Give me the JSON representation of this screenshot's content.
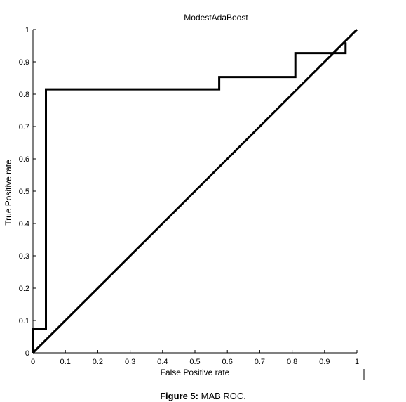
{
  "chart_data": {
    "type": "line",
    "title": "ModestAdaBoost",
    "xlabel": "False Positive rate",
    "ylabel": "True Positive rate",
    "xlim": [
      0,
      1
    ],
    "ylim": [
      0,
      1
    ],
    "xticks": [
      "0",
      "0.1",
      "0.2",
      "0.3",
      "0.4",
      "0.5",
      "0.6",
      "0.7",
      "0.8",
      "0.9",
      "1"
    ],
    "yticks": [
      "0",
      "0.1",
      "0.2",
      "0.3",
      "0.4",
      "0.5",
      "0.6",
      "0.7",
      "0.8",
      "0.9",
      "1"
    ],
    "grid": false,
    "series": [
      {
        "x": [
          0,
          0,
          0.04,
          0.04,
          0.575,
          0.575,
          0.81,
          0.81,
          0.965,
          0.965
        ],
        "y": [
          0,
          0.075,
          0.075,
          0.815,
          0.815,
          0.853,
          0.853,
          0.927,
          0.927,
          0.96
        ]
      },
      {
        "x": [
          0,
          1
        ],
        "y": [
          0,
          1
        ]
      }
    ],
    "line_color": "#000000"
  },
  "caption": {
    "label": "Figure 5:",
    "text": "MAB ROC."
  }
}
